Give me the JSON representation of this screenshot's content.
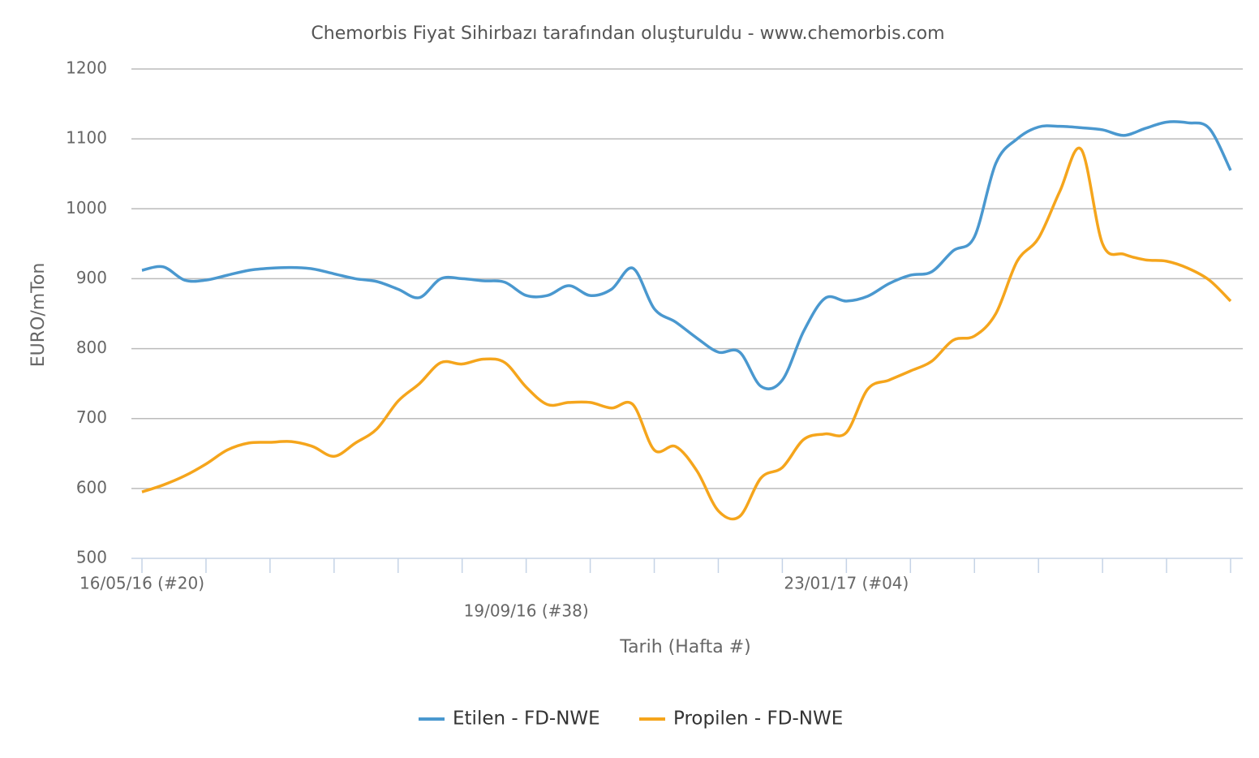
{
  "chart_data": {
    "type": "line",
    "title": "Chemorbis Fiyat Sihirbazı tarafından oluşturuldu - www.chemorbis.com",
    "x_label": "Tarih (Hafta #)",
    "y_label": "EURO/mTon",
    "categories": [
      "16/05/16 (#20)",
      null,
      null,
      null,
      null,
      null,
      null,
      null,
      null,
      null,
      null,
      null,
      null,
      null,
      null,
      null,
      null,
      null,
      "19/09/16 (#38)",
      null,
      null,
      null,
      null,
      null,
      null,
      null,
      null,
      null,
      null,
      null,
      null,
      null,
      null,
      "23/01/17 (#04)",
      null,
      null,
      null,
      null,
      null,
      null,
      null,
      null,
      null,
      null,
      null,
      null,
      null,
      null,
      null,
      null,
      null,
      null
    ],
    "series": [
      {
        "name": "Etilen - FD-NWE",
        "color": "#4a98cf",
        "values": [
          912,
          917,
          898,
          898,
          905,
          912,
          915,
          916,
          914,
          907,
          900,
          896,
          885,
          873,
          900,
          900,
          897,
          895,
          876,
          876,
          890,
          876,
          885,
          915,
          857,
          838,
          815,
          795,
          795,
          746,
          755,
          825,
          872,
          868,
          875,
          893,
          905,
          910,
          940,
          960,
          1065,
          1100,
          1117,
          1118,
          1116,
          1113,
          1105,
          1115,
          1124,
          1123,
          1115,
          1055
        ]
      },
      {
        "name": "Propilen - FD-NWE",
        "color": "#f5a51c",
        "values": [
          595,
          605,
          618,
          635,
          655,
          665,
          666,
          667,
          660,
          646,
          665,
          685,
          725,
          750,
          780,
          778,
          785,
          780,
          745,
          720,
          723,
          723,
          715,
          720,
          655,
          660,
          625,
          568,
          560,
          615,
          630,
          670,
          678,
          680,
          742,
          755,
          768,
          782,
          812,
          818,
          850,
          925,
          958,
          1025,
          1085,
          950,
          935,
          927,
          925,
          915,
          898,
          868
        ]
      }
    ],
    "ylim": [
      500,
      1200
    ],
    "yticks": [
      500,
      600,
      700,
      800,
      900,
      1000,
      1100,
      1200
    ],
    "grid": true,
    "legend": "bottom"
  }
}
